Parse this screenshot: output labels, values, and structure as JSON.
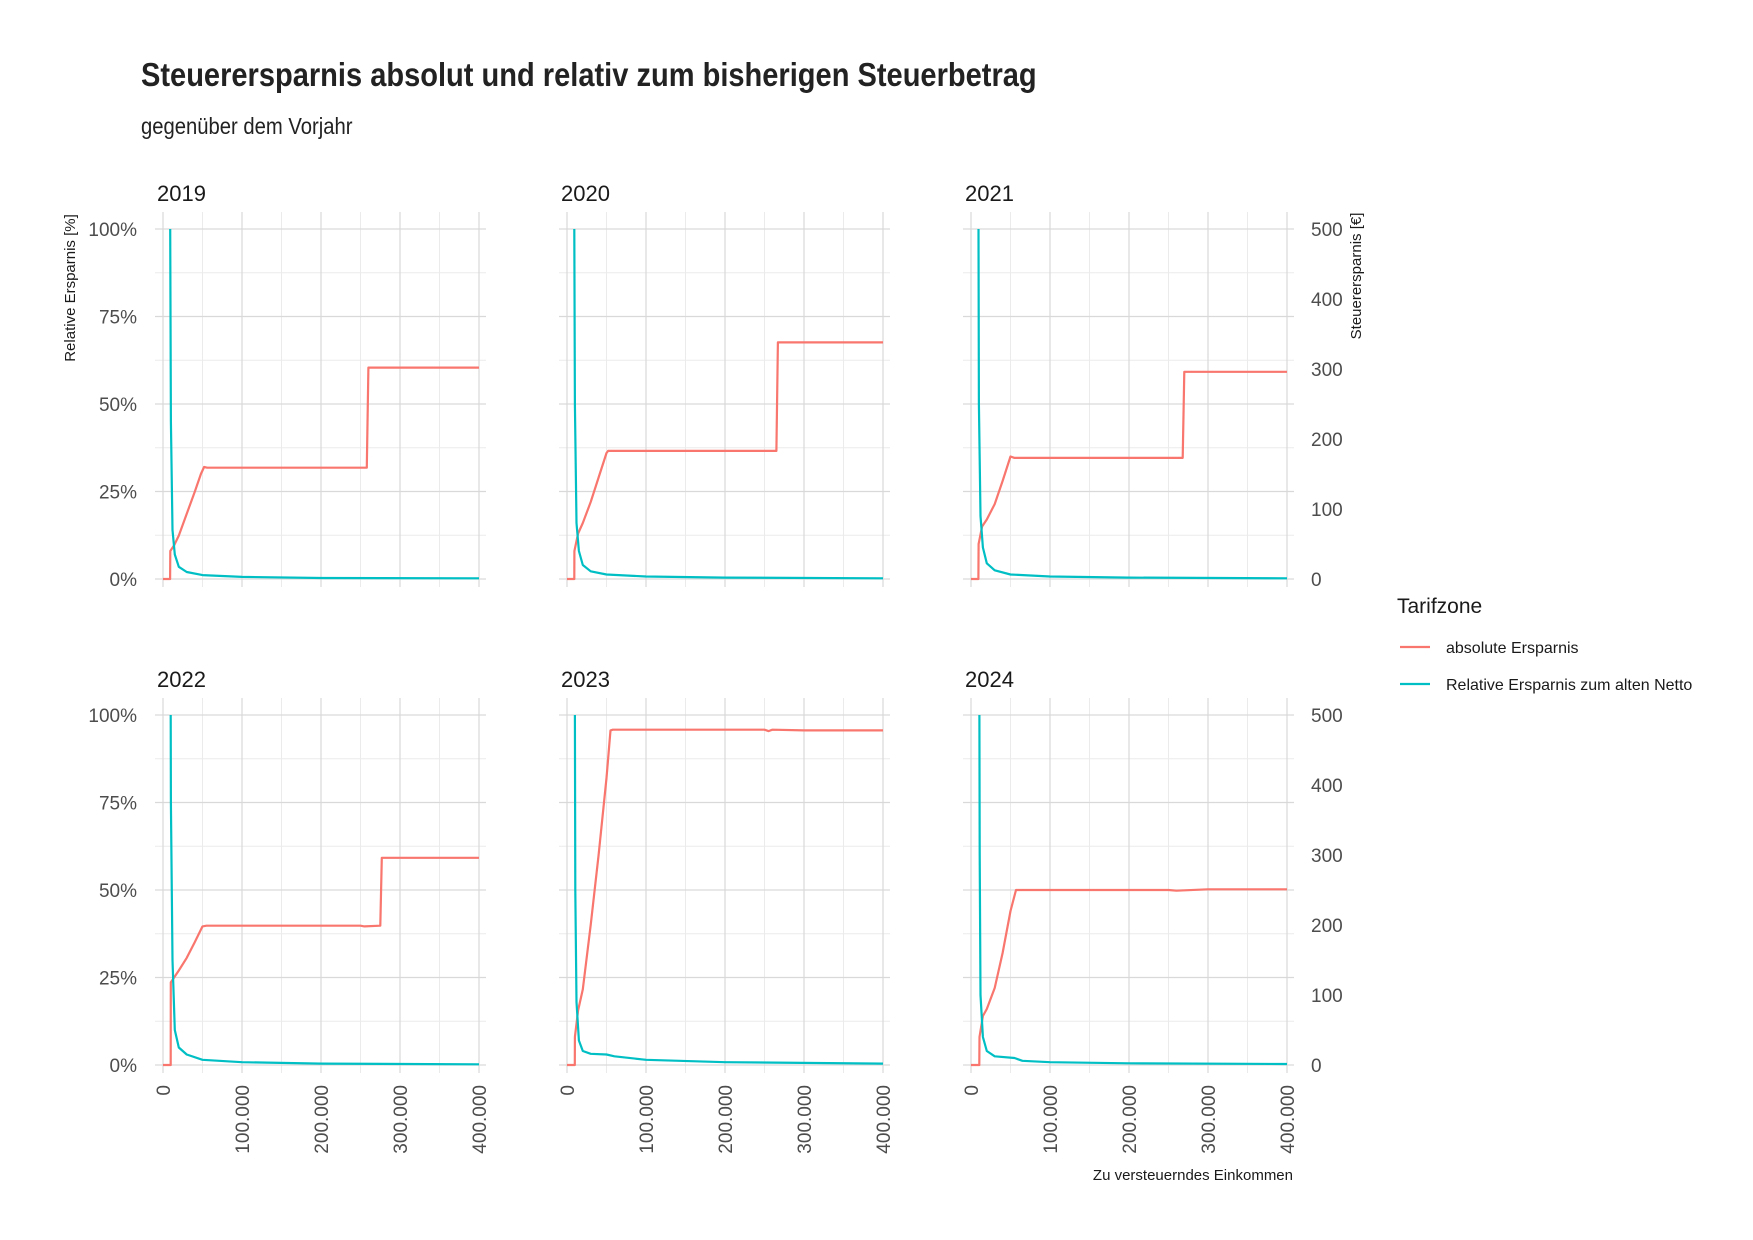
{
  "chart_data": {
    "type": "line",
    "title": "Steuerersparnis absolut und relativ zum bisherigen Steuerbetrag",
    "subtitle": "gegenüber dem Vorjahr",
    "xlabel": "Zu versteuerndes Einkommen",
    "ylabel_left": "Relative Ersparnis [%]",
    "ylabel_right": "Steuerersparnis [€]",
    "xlim": [
      0,
      400000
    ],
    "ylim_left": [
      0,
      1
    ],
    "ylim_right": [
      0,
      500
    ],
    "x_ticks": [
      "0",
      "100.000",
      "200.000",
      "300.000",
      "400.000"
    ],
    "y_left_ticks": [
      "0%",
      "25%",
      "50%",
      "75%",
      "100%"
    ],
    "y_right_ticks": [
      "0",
      "100",
      "200",
      "300",
      "400",
      "500"
    ],
    "grid": true,
    "legend": {
      "title": "Tarifzone",
      "position": "right",
      "entries": [
        {
          "label": "absolute Ersparnis",
          "color": "#F8766D"
        },
        {
          "label": "Relative Ersparnis zum alten Netto",
          "color": "#00BFC4"
        }
      ]
    },
    "panels": [
      {
        "year": "2019",
        "absolute": [
          [
            0,
            0
          ],
          [
            9000,
            0
          ],
          [
            9200,
            40
          ],
          [
            14000,
            48
          ],
          [
            20000,
            62
          ],
          [
            30000,
            93
          ],
          [
            40000,
            124
          ],
          [
            48000,
            150
          ],
          [
            52000,
            160
          ],
          [
            56000,
            159
          ],
          [
            250000,
            159
          ],
          [
            258000,
            159
          ],
          [
            260000,
            302
          ],
          [
            400000,
            302
          ]
        ],
        "relative": [
          [
            9100,
            1.0
          ],
          [
            10000,
            0.45
          ],
          [
            12000,
            0.14
          ],
          [
            15000,
            0.07
          ],
          [
            20000,
            0.035
          ],
          [
            30000,
            0.02
          ],
          [
            50000,
            0.011
          ],
          [
            100000,
            0.006
          ],
          [
            200000,
            0.003
          ],
          [
            400000,
            0.002
          ]
        ]
      },
      {
        "year": "2020",
        "absolute": [
          [
            0,
            0
          ],
          [
            9200,
            0
          ],
          [
            9400,
            40
          ],
          [
            14000,
            65
          ],
          [
            20000,
            80
          ],
          [
            30000,
            110
          ],
          [
            40000,
            145
          ],
          [
            50000,
            180
          ],
          [
            52000,
            183
          ],
          [
            260000,
            183
          ],
          [
            265000,
            183
          ],
          [
            267000,
            338
          ],
          [
            400000,
            338
          ]
        ],
        "relative": [
          [
            9300,
            1.0
          ],
          [
            10000,
            0.5
          ],
          [
            12000,
            0.16
          ],
          [
            15000,
            0.08
          ],
          [
            20000,
            0.04
          ],
          [
            30000,
            0.022
          ],
          [
            50000,
            0.013
          ],
          [
            100000,
            0.007
          ],
          [
            200000,
            0.004
          ],
          [
            400000,
            0.002
          ]
        ]
      },
      {
        "year": "2021",
        "absolute": [
          [
            0,
            0
          ],
          [
            9400,
            0
          ],
          [
            9600,
            50
          ],
          [
            14000,
            75
          ],
          [
            20000,
            85
          ],
          [
            30000,
            107
          ],
          [
            40000,
            140
          ],
          [
            50000,
            175
          ],
          [
            55000,
            173
          ],
          [
            265000,
            173
          ],
          [
            268000,
            173
          ],
          [
            270000,
            296
          ],
          [
            400000,
            296
          ]
        ],
        "relative": [
          [
            9500,
            1.0
          ],
          [
            10000,
            0.5
          ],
          [
            12000,
            0.18
          ],
          [
            15000,
            0.09
          ],
          [
            20000,
            0.045
          ],
          [
            30000,
            0.025
          ],
          [
            50000,
            0.013
          ],
          [
            100000,
            0.007
          ],
          [
            200000,
            0.004
          ],
          [
            400000,
            0.002
          ]
        ]
      },
      {
        "year": "2022",
        "absolute": [
          [
            0,
            0
          ],
          [
            9700,
            0
          ],
          [
            9900,
            118
          ],
          [
            14000,
            125
          ],
          [
            20000,
            135
          ],
          [
            30000,
            153
          ],
          [
            40000,
            175
          ],
          [
            50000,
            198
          ],
          [
            55000,
            199
          ],
          [
            250000,
            199
          ],
          [
            255000,
            198
          ],
          [
            275000,
            199
          ],
          [
            277000,
            296
          ],
          [
            400000,
            296
          ]
        ],
        "relative": [
          [
            9800,
            1.0
          ],
          [
            10000,
            0.75
          ],
          [
            12000,
            0.3
          ],
          [
            15000,
            0.1
          ],
          [
            20000,
            0.05
          ],
          [
            30000,
            0.03
          ],
          [
            50000,
            0.015
          ],
          [
            100000,
            0.008
          ],
          [
            200000,
            0.004
          ],
          [
            400000,
            0.002
          ]
        ]
      },
      {
        "year": "2023",
        "absolute": [
          [
            0,
            0
          ],
          [
            9900,
            0
          ],
          [
            10000,
            40
          ],
          [
            14000,
            78
          ],
          [
            20000,
            108
          ],
          [
            30000,
            200
          ],
          [
            40000,
            300
          ],
          [
            50000,
            410
          ],
          [
            55000,
            478
          ],
          [
            58000,
            479
          ],
          [
            250000,
            479
          ],
          [
            255000,
            477
          ],
          [
            260000,
            479
          ],
          [
            300000,
            478
          ],
          [
            400000,
            478
          ]
        ],
        "relative": [
          [
            10000,
            1.0
          ],
          [
            10500,
            0.5
          ],
          [
            12000,
            0.18
          ],
          [
            15000,
            0.07
          ],
          [
            20000,
            0.04
          ],
          [
            30000,
            0.032
          ],
          [
            50000,
            0.03
          ],
          [
            60000,
            0.025
          ],
          [
            100000,
            0.015
          ],
          [
            200000,
            0.008
          ],
          [
            400000,
            0.004
          ]
        ]
      },
      {
        "year": "2024",
        "absolute": [
          [
            0,
            0
          ],
          [
            10500,
            0
          ],
          [
            10700,
            40
          ],
          [
            15000,
            70
          ],
          [
            20000,
            80
          ],
          [
            30000,
            110
          ],
          [
            40000,
            160
          ],
          [
            50000,
            220
          ],
          [
            57000,
            250
          ],
          [
            250000,
            250
          ],
          [
            260000,
            249
          ],
          [
            300000,
            251
          ],
          [
            400000,
            251
          ]
        ],
        "relative": [
          [
            10600,
            1.0
          ],
          [
            11000,
            0.6
          ],
          [
            12000,
            0.2
          ],
          [
            15000,
            0.08
          ],
          [
            20000,
            0.04
          ],
          [
            30000,
            0.025
          ],
          [
            55000,
            0.02
          ],
          [
            65000,
            0.012
          ],
          [
            100000,
            0.008
          ],
          [
            200000,
            0.005
          ],
          [
            400000,
            0.003
          ]
        ]
      }
    ]
  }
}
